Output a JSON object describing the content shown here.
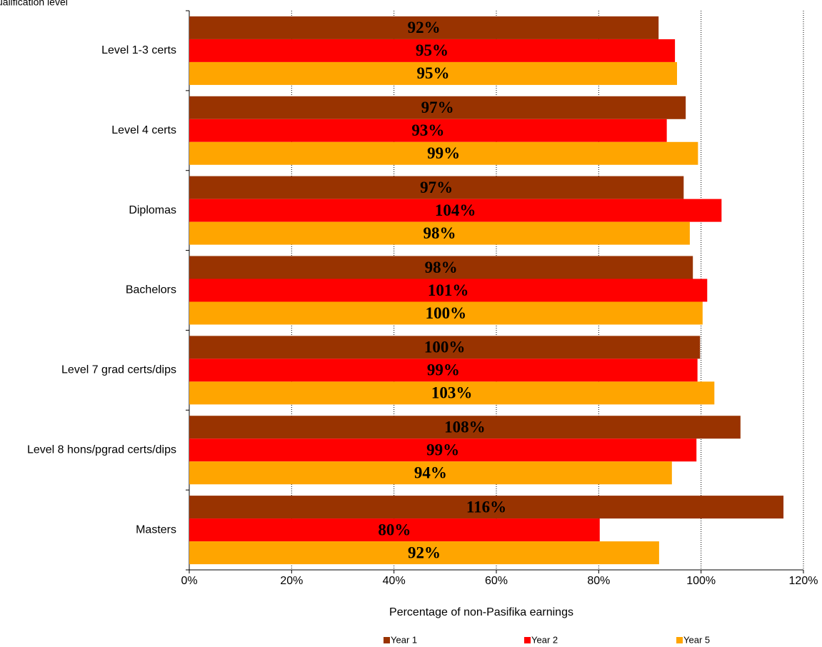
{
  "chart_data": {
    "type": "bar",
    "orientation": "horizontal",
    "title": "ualification level",
    "x_label": "Percentage of non-Pasifika  earnings",
    "categories": [
      "Level 1-3 certs",
      "Level 4 certs",
      "Diplomas",
      "Bachelors",
      "Level 7 grad certs/dips",
      "Level 8 hons/pgrad certs/dips",
      "Masters"
    ],
    "series": [
      {
        "name": "Year 1",
        "color": "#993300",
        "values": [
          91.7,
          97,
          96.6,
          98.4,
          99.8,
          107.7,
          116.1
        ],
        "value_labels": [
          "92%",
          "97%",
          "97%",
          "98%",
          "100%",
          "108%",
          "116%"
        ]
      },
      {
        "name": "Year 2",
        "color": "#ff0000",
        "values": [
          94.9,
          93.3,
          104,
          101.2,
          99.3,
          99.1,
          80.2
        ],
        "value_labels": [
          "95%",
          "93%",
          "104%",
          "101%",
          "99%",
          "99%",
          "80%"
        ]
      },
      {
        "name": "Year 5",
        "color": "#ffa500",
        "values": [
          95.3,
          99.4,
          97.8,
          100.3,
          102.6,
          94.3,
          91.8
        ],
        "value_labels": [
          "95%",
          "99%",
          "98%",
          "100%",
          "103%",
          "94%",
          "92%"
        ]
      }
    ],
    "xlim": [
      0,
      120
    ],
    "xticks": [
      {
        "value": 0,
        "label": "0%"
      },
      {
        "value": 20,
        "label": "20%"
      },
      {
        "value": 40,
        "label": "40%"
      },
      {
        "value": 60,
        "label": "60%"
      },
      {
        "value": 80,
        "label": "80%"
      },
      {
        "value": 100,
        "label": "100%"
      },
      {
        "value": 120,
        "label": "120%"
      }
    ],
    "grid": true,
    "legend": "bottom"
  }
}
